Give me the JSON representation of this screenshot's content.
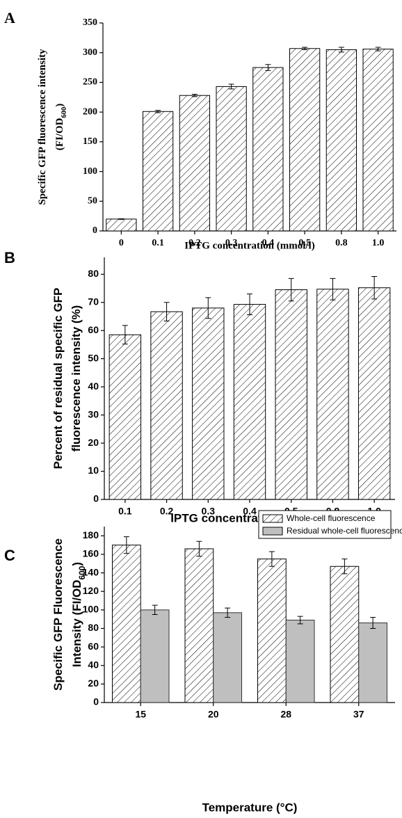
{
  "chart_data": [
    {
      "type": "bar",
      "panel_label": "A",
      "categories": [
        "0",
        "0.1",
        "0.2",
        "0.3",
        "0.4",
        "0.5",
        "0.8",
        "1.0"
      ],
      "values": [
        20,
        201,
        228,
        243,
        275,
        307,
        305,
        306
      ],
      "errors": [
        0.5,
        2,
        2,
        4,
        5,
        2,
        4,
        3
      ],
      "color": "#000000",
      "pattern": "hatch",
      "x_label": "IPTG concentration (mmol/l)",
      "y_label": [
        [
          "Specific GFP fluorescence intensity"
        ],
        [
          "(FI/OD",
          "600",
          ")"
        ]
      ],
      "ylim": [
        0,
        350
      ],
      "yticks": [
        0,
        50,
        100,
        150,
        200,
        250,
        300,
        350
      ]
    },
    {
      "type": "bar",
      "panel_label": "B",
      "categories": [
        "0.1",
        "0.2",
        "0.3",
        "0.4",
        "0.5",
        "0.8",
        "1.0"
      ],
      "values": [
        58.5,
        66.7,
        68,
        69.3,
        74.5,
        74.7,
        75.2
      ],
      "errors": [
        3.3,
        3.3,
        3.7,
        3.7,
        4,
        3.8,
        4
      ],
      "color": "#000000",
      "pattern": "hatch",
      "x_label": "IPTG concentration (mmol/l)",
      "y_label": [
        [
          "Percent of residual specific GFP"
        ],
        [
          "fluorescence intensity (%)"
        ]
      ],
      "ylim": [
        0,
        86
      ],
      "yticks": [
        0,
        10,
        20,
        30,
        40,
        50,
        60,
        70,
        80
      ]
    },
    {
      "type": "bar",
      "panel_label": "C",
      "categories": [
        "15",
        "20",
        "28",
        "37"
      ],
      "series": [
        {
          "name": "Whole-cell fluorescence",
          "color": "#000000",
          "pattern": "hatch",
          "values": [
            170,
            166,
            155,
            147
          ],
          "errors": [
            9,
            8,
            8,
            8
          ]
        },
        {
          "name": "Residual whole-cell fluorescence",
          "color": "#bfbfbf",
          "values": [
            100,
            97,
            89,
            86
          ],
          "errors": [
            5,
            5,
            4,
            6
          ]
        }
      ],
      "legend": "top-right",
      "x_label": "Temperature (°C)",
      "y_label": [
        [
          "Specific GFP Fluorescence"
        ],
        [
          "Intensity (FI/OD",
          "600",
          ")"
        ]
      ],
      "ylim": [
        0,
        190
      ],
      "yticks": [
        0,
        20,
        40,
        60,
        80,
        100,
        120,
        140,
        160,
        180
      ]
    }
  ]
}
